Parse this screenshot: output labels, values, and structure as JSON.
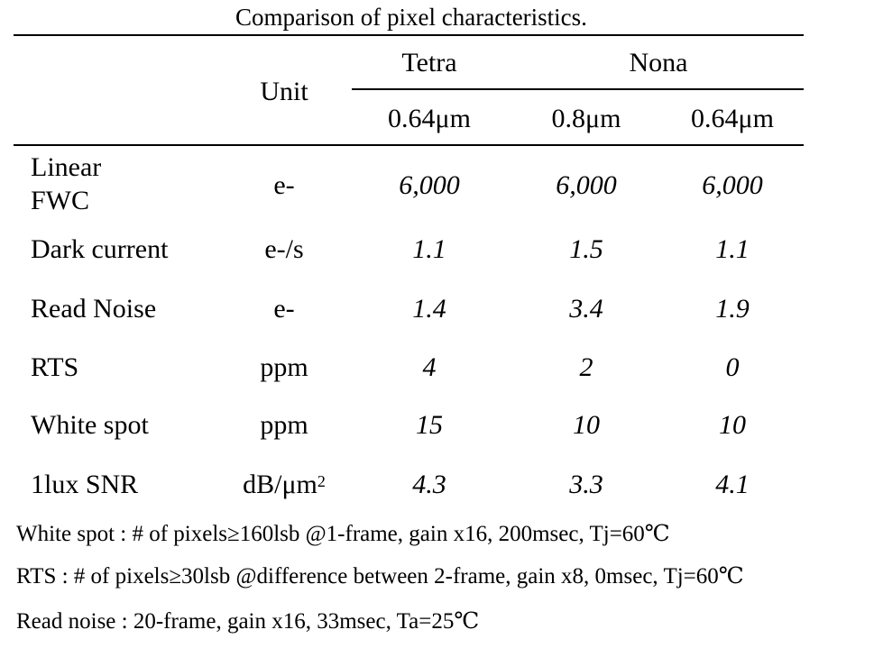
{
  "caption": "Comparison of pixel characteristics.",
  "header": {
    "unit": "Unit",
    "group_tetra": "Tetra",
    "group_nona": "Nona",
    "sub_tetra_064": "0.64μm",
    "sub_nona_08": "0.8μm",
    "sub_nona_064": "0.64μm"
  },
  "rows": [
    {
      "label_line1": "Linear",
      "label_line2": "FWC",
      "unit": "e-",
      "tetra_064": "6,000",
      "nona_08": "6,000",
      "nona_064": "6,000"
    },
    {
      "label": "Dark current",
      "unit": "e-/s",
      "tetra_064": "1.1",
      "nona_08": "1.5",
      "nona_064": "1.1"
    },
    {
      "label": "Read Noise",
      "unit": "e-",
      "tetra_064": "1.4",
      "nona_08": "3.4",
      "nona_064": "1.9"
    },
    {
      "label": "RTS",
      "unit": "ppm",
      "tetra_064": "4",
      "nona_08": "2",
      "nona_064": "0"
    },
    {
      "label": "White spot",
      "unit": "ppm",
      "tetra_064": "15",
      "nona_08": "10",
      "nona_064": "10"
    },
    {
      "label": "1lux SNR",
      "unit_base": "dB/μm",
      "unit_sup": "2",
      "tetra_064": "4.3",
      "nona_08": "3.3",
      "nona_064": "4.1"
    }
  ],
  "notes": [
    "White spot : # of pixels≥160lsb @1-frame, gain x16, 200msec, Tj=60℃",
    "RTS : # of pixels≥30lsb @difference between 2-frame, gain x8, 0msec, Tj=60℃",
    "Read noise : 20-frame, gain x16, 33msec, Ta=25℃"
  ]
}
